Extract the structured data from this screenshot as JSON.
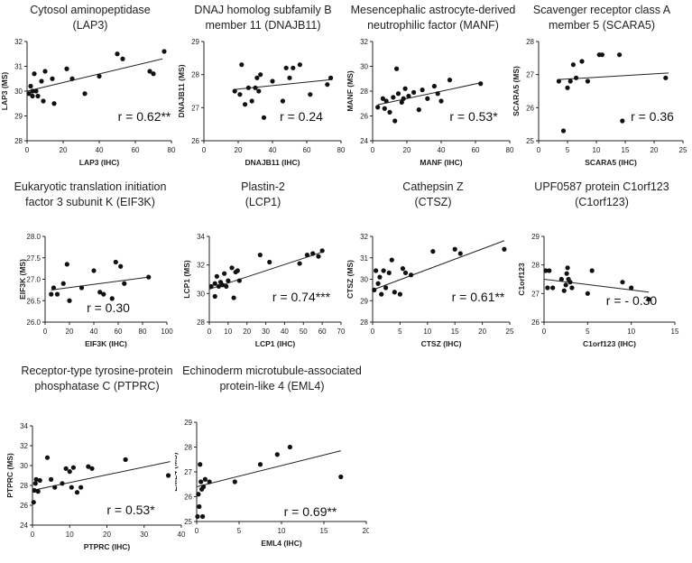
{
  "chart_data": [
    {
      "type": "scatter",
      "title": [
        "Cytosol aminopeptidase",
        "(LAP3)"
      ],
      "xlabel": "LAP3 (IHC)",
      "ylabel": "LAP3  (MS)",
      "xlim": [
        0,
        80
      ],
      "ylim": [
        28,
        32
      ],
      "xticks": [
        0,
        20,
        40,
        60,
        80
      ],
      "yticks": [
        28,
        29,
        30,
        31,
        32
      ],
      "annotation": "r = 0.62**",
      "trendline": [
        [
          0,
          30.0
        ],
        [
          75,
          31.3
        ]
      ],
      "points": [
        [
          1,
          29.9
        ],
        [
          2,
          30.2
        ],
        [
          3,
          30.0
        ],
        [
          3,
          29.8
        ],
        [
          4,
          30.7
        ],
        [
          5,
          30.0
        ],
        [
          6,
          29.8
        ],
        [
          8,
          30.4
        ],
        [
          9,
          29.6
        ],
        [
          10,
          30.8
        ],
        [
          14,
          30.5
        ],
        [
          15,
          29.5
        ],
        [
          22,
          30.9
        ],
        [
          25,
          30.5
        ],
        [
          32,
          29.9
        ],
        [
          40,
          30.6
        ],
        [
          50,
          31.5
        ],
        [
          53,
          31.3
        ],
        [
          68,
          30.8
        ],
        [
          70,
          30.7
        ],
        [
          76,
          31.6
        ]
      ]
    },
    {
      "type": "scatter",
      "title": [
        "DNAJ homolog subfamily B",
        "member 11 (DNAJB11)"
      ],
      "xlabel": "DNAJB11 (IHC)",
      "ylabel": "DNAJB11  (MS)",
      "xlim": [
        0,
        80
      ],
      "ylim": [
        26,
        29
      ],
      "xticks": [
        0,
        20,
        40,
        60,
        80
      ],
      "yticks": [
        26,
        27,
        28,
        29
      ],
      "annotation": "r = 0.24",
      "trendline": [
        [
          18,
          27.55
        ],
        [
          75,
          27.85
        ]
      ],
      "points": [
        [
          18,
          27.5
        ],
        [
          21,
          27.4
        ],
        [
          22,
          28.3
        ],
        [
          24,
          27.1
        ],
        [
          26,
          27.6
        ],
        [
          28,
          27.2
        ],
        [
          30,
          27.6
        ],
        [
          31,
          27.9
        ],
        [
          32,
          27.5
        ],
        [
          33,
          28.0
        ],
        [
          35,
          26.7
        ],
        [
          40,
          27.8
        ],
        [
          46,
          27.2
        ],
        [
          48,
          28.2
        ],
        [
          50,
          27.9
        ],
        [
          52,
          28.2
        ],
        [
          56,
          28.3
        ],
        [
          62,
          27.4
        ],
        [
          72,
          27.7
        ],
        [
          74,
          27.9
        ]
      ]
    },
    {
      "type": "scatter",
      "title": [
        "Mesencephalic astrocyte-derived",
        "neutrophilic factor (MANF)"
      ],
      "xlabel": "MANF (IHC)",
      "ylabel": "MANF  (MS)",
      "xlim": [
        0,
        80
      ],
      "ylim": [
        24,
        32
      ],
      "xticks": [
        0,
        20,
        40,
        60,
        80
      ],
      "yticks": [
        24,
        26,
        28,
        30,
        32
      ],
      "annotation": "r = 0.53*",
      "trendline": [
        [
          3,
          26.9
        ],
        [
          64,
          28.7
        ]
      ],
      "points": [
        [
          3,
          26.7
        ],
        [
          6,
          27.4
        ],
        [
          7,
          26.6
        ],
        [
          8,
          27.2
        ],
        [
          10,
          26.3
        ],
        [
          12,
          27.5
        ],
        [
          13,
          25.6
        ],
        [
          14,
          29.8
        ],
        [
          15,
          27.8
        ],
        [
          17,
          27.1
        ],
        [
          18,
          27.4
        ],
        [
          19,
          28.2
        ],
        [
          21,
          27.6
        ],
        [
          24,
          27.9
        ],
        [
          27,
          26.5
        ],
        [
          29,
          28.1
        ],
        [
          32,
          27.4
        ],
        [
          36,
          28.4
        ],
        [
          38,
          27.8
        ],
        [
          40,
          27.2
        ],
        [
          45,
          28.9
        ],
        [
          63,
          28.6
        ]
      ]
    },
    {
      "type": "scatter",
      "title": [
        "Scavenger receptor class A",
        "member 5 (SCARA5)"
      ],
      "xlabel": "SCARA5 (IHC)",
      "ylabel": "SCARA5 (MS)",
      "xlim": [
        0,
        25
      ],
      "ylim": [
        25,
        28
      ],
      "xticks": [
        0,
        5,
        10,
        15,
        20,
        25
      ],
      "yticks": [
        25,
        26,
        27,
        28
      ],
      "annotation": "r = 0.36",
      "trendline": [
        [
          3.5,
          26.85
        ],
        [
          22.5,
          27.05
        ]
      ],
      "points": [
        [
          3.5,
          26.8
        ],
        [
          4.3,
          25.3
        ],
        [
          5.0,
          26.6
        ],
        [
          5.5,
          26.8
        ],
        [
          6.0,
          27.3
        ],
        [
          6.5,
          26.9
        ],
        [
          7.5,
          27.4
        ],
        [
          8.5,
          26.8
        ],
        [
          10.5,
          27.6
        ],
        [
          11,
          27.6
        ],
        [
          14,
          27.6
        ],
        [
          14.5,
          25.6
        ],
        [
          22,
          26.9
        ]
      ]
    },
    {
      "type": "scatter",
      "title": [
        "Eukaryotic translation initiation",
        "factor 3 subunit K (EIF3K)"
      ],
      "xlabel": "EIF3K (IHC)",
      "ylabel": "EIF3K  (MS)",
      "xlim": [
        0,
        100
      ],
      "ylim": [
        26.0,
        28.0
      ],
      "xticks": [
        0,
        20,
        40,
        60,
        80,
        100
      ],
      "yticks": [
        26.0,
        26.5,
        27.0,
        27.5,
        28.0
      ],
      "yticklabels": [
        "26.0",
        "26.5",
        "27.0",
        "27.5",
        "28.0"
      ],
      "annotation": "r = 0.30",
      "trendline": [
        [
          5,
          26.75
        ],
        [
          85,
          27.05
        ]
      ],
      "points": [
        [
          5,
          26.65
        ],
        [
          7,
          26.8
        ],
        [
          10,
          26.65
        ],
        [
          15,
          26.9
        ],
        [
          18,
          27.35
        ],
        [
          20,
          26.5
        ],
        [
          30,
          26.8
        ],
        [
          40,
          27.2
        ],
        [
          45,
          26.7
        ],
        [
          48,
          26.65
        ],
        [
          55,
          26.55
        ],
        [
          58,
          27.4
        ],
        [
          62,
          27.3
        ],
        [
          65,
          26.9
        ],
        [
          85,
          27.05
        ]
      ]
    },
    {
      "type": "scatter",
      "title": [
        "Plastin-2",
        "(LCP1)"
      ],
      "xlabel": "LCP1 (IHC)",
      "ylabel": "LCP1  (MS)",
      "xlim": [
        0,
        70
      ],
      "ylim": [
        28,
        34
      ],
      "xticks": [
        0,
        10,
        20,
        30,
        40,
        50,
        60,
        70
      ],
      "yticks": [
        28,
        30,
        32,
        34
      ],
      "annotation": "r = 0.74***",
      "trendline": [
        [
          0,
          30.3
        ],
        [
          60,
          32.9
        ]
      ],
      "points": [
        [
          1,
          30.5
        ],
        [
          3,
          29.8
        ],
        [
          3,
          30.7
        ],
        [
          4,
          31.2
        ],
        [
          5,
          30.5
        ],
        [
          6,
          30.8
        ],
        [
          7,
          30.6
        ],
        [
          8,
          31.4
        ],
        [
          9,
          30.5
        ],
        [
          10,
          30.9
        ],
        [
          12,
          31.8
        ],
        [
          13,
          29.7
        ],
        [
          14,
          31.5
        ],
        [
          15,
          31.6
        ],
        [
          16,
          30.9
        ],
        [
          27,
          32.7
        ],
        [
          32,
          32.2
        ],
        [
          48,
          32.1
        ],
        [
          52,
          32.7
        ],
        [
          55,
          32.8
        ],
        [
          58,
          32.6
        ],
        [
          60,
          33.0
        ]
      ]
    },
    {
      "type": "scatter",
      "title": [
        "Cathepsin Z",
        "(CTSZ)"
      ],
      "xlabel": "CTSZ (IHC)",
      "ylabel": "CTSZ  (MS)",
      "xlim": [
        0,
        25
      ],
      "ylim": [
        28,
        32
      ],
      "xticks": [
        0,
        5,
        10,
        15,
        20,
        25
      ],
      "yticks": [
        28,
        29,
        30,
        31,
        32
      ],
      "annotation": "r = 0.61**",
      "trendline": [
        [
          0,
          29.5
        ],
        [
          24,
          31.8
        ]
      ],
      "points": [
        [
          0.3,
          29.5
        ],
        [
          0.6,
          30.4
        ],
        [
          1,
          29.8
        ],
        [
          1.3,
          30.1
        ],
        [
          1.6,
          29.3
        ],
        [
          2,
          30.4
        ],
        [
          2.4,
          29.6
        ],
        [
          3,
          30.3
        ],
        [
          3.5,
          30.9
        ],
        [
          4,
          29.4
        ],
        [
          5,
          29.3
        ],
        [
          5.5,
          30.5
        ],
        [
          6,
          30.3
        ],
        [
          7,
          30.2
        ],
        [
          11,
          31.3
        ],
        [
          15,
          31.4
        ],
        [
          16,
          31.2
        ],
        [
          24,
          31.4
        ]
      ]
    },
    {
      "type": "scatter",
      "title": [
        "UPF0587 protein C1orf123",
        "(C1orf123)"
      ],
      "xlabel": "C1orf123 (IHC)",
      "ylabel": "C1orf123",
      "xlim": [
        0,
        15
      ],
      "ylim": [
        26,
        29
      ],
      "xticks": [
        0,
        5,
        10,
        15
      ],
      "yticks": [
        26,
        27,
        28,
        29
      ],
      "annotation": "r = - 0.30",
      "trendline": [
        [
          0,
          27.5
        ],
        [
          12,
          27.05
        ]
      ],
      "points": [
        [
          0.2,
          27.8
        ],
        [
          0.4,
          27.2
        ],
        [
          0.6,
          27.8
        ],
        [
          1,
          27.2
        ],
        [
          2,
          27.5
        ],
        [
          2.3,
          27.1
        ],
        [
          2.5,
          27.3
        ],
        [
          2.6,
          27.7
        ],
        [
          2.7,
          27.9
        ],
        [
          2.8,
          27.5
        ],
        [
          3,
          27.4
        ],
        [
          3.2,
          27.2
        ],
        [
          5,
          27.0
        ],
        [
          5.5,
          27.8
        ],
        [
          9,
          27.4
        ],
        [
          10,
          27.2
        ],
        [
          12,
          26.8
        ]
      ]
    },
    {
      "type": "scatter",
      "title": [
        "Receptor-type tyrosine-protein",
        "phosphatase C (PTPRC)"
      ],
      "xlabel": "PTPRC (IHC)",
      "ylabel": "PTPRC (MS)",
      "xlim": [
        0,
        40
      ],
      "ylim": [
        24,
        34
      ],
      "xticks": [
        0,
        10,
        20,
        30,
        40
      ],
      "yticks": [
        24,
        26,
        28,
        30,
        32,
        34
      ],
      "annotation": "r = 0.53*",
      "trendline": [
        [
          0,
          27.5
        ],
        [
          37,
          30.4
        ]
      ],
      "points": [
        [
          0.3,
          26.3
        ],
        [
          0.5,
          27.5
        ],
        [
          0.8,
          28.2
        ],
        [
          1,
          28.6
        ],
        [
          1.5,
          27.4
        ],
        [
          2,
          28.5
        ],
        [
          4,
          30.8
        ],
        [
          5,
          28.6
        ],
        [
          6,
          27.8
        ],
        [
          8,
          28.2
        ],
        [
          9,
          29.7
        ],
        [
          10,
          29.4
        ],
        [
          10.5,
          27.8
        ],
        [
          11,
          29.8
        ],
        [
          12,
          27.3
        ],
        [
          13,
          27.8
        ],
        [
          15,
          29.9
        ],
        [
          16,
          29.7
        ],
        [
          25,
          30.6
        ],
        [
          36.5,
          29.0
        ]
      ]
    },
    {
      "type": "scatter",
      "title": [
        "Echinoderm microtubule-associated",
        "protein-like 4 (EML4)"
      ],
      "xlabel": "EML4 (IHC)",
      "ylabel": "EML4  (MS)",
      "xlim": [
        0,
        20
      ],
      "ylim": [
        25,
        29
      ],
      "xticks": [
        0,
        5,
        10,
        15,
        20
      ],
      "yticks": [
        25,
        26,
        27,
        28,
        29
      ],
      "annotation": "r = 0.69**",
      "trendline": [
        [
          0,
          26.4
        ],
        [
          17,
          27.85
        ]
      ],
      "points": [
        [
          0.1,
          25.2
        ],
        [
          0.2,
          26.1
        ],
        [
          0.3,
          25.6
        ],
        [
          0.4,
          27.3
        ],
        [
          0.5,
          26.6
        ],
        [
          0.6,
          26.3
        ],
        [
          0.7,
          25.2
        ],
        [
          0.8,
          26.4
        ],
        [
          1,
          26.7
        ],
        [
          1.5,
          26.6
        ],
        [
          4.5,
          26.6
        ],
        [
          7.5,
          27.3
        ],
        [
          9.5,
          27.7
        ],
        [
          11,
          28.0
        ],
        [
          17,
          26.8
        ]
      ]
    }
  ]
}
